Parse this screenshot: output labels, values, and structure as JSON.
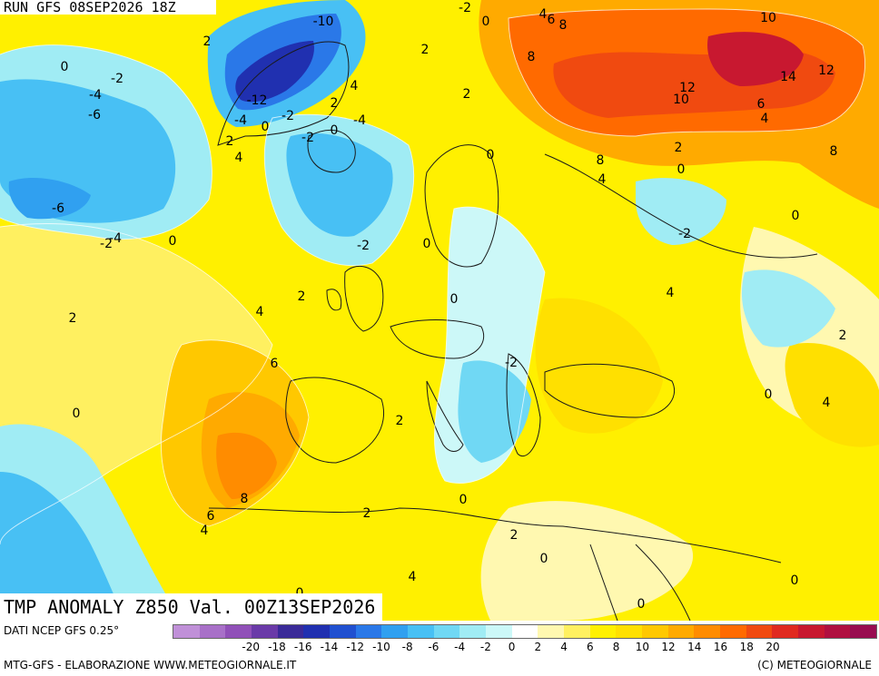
{
  "header": {
    "run_label": "RUN GFS 08SEP2026 18Z",
    "valid_label": "TMP ANOMALY Z850 Val. 00Z13SEP2026"
  },
  "footer": {
    "source_label": "DATI NCEP GFS 0.25°",
    "credit_label": "MTG-GFS - ELABORAZIONE WWW.METEOGIORNALE.IT",
    "copyright_label": "(C) METEOGIORNALE"
  },
  "legend": {
    "colors": [
      "#c090d8",
      "#a870c8",
      "#9050b8",
      "#6a3aa8",
      "#3a2a98",
      "#2030b0",
      "#2050d0",
      "#2a78e8",
      "#30a0f0",
      "#48c0f4",
      "#70d8f4",
      "#a0ecf4",
      "#ccf8f8",
      "#ffffff",
      "#fff8b0",
      "#fff060",
      "#fff000",
      "#ffe000",
      "#ffc800",
      "#ffaa00",
      "#ff8c00",
      "#ff6a00",
      "#f04a10",
      "#e02a20",
      "#c81830",
      "#b01040",
      "#980c50"
    ],
    "tick_labels": [
      "-20",
      "-18",
      "-16",
      "-14",
      "-12",
      "-10",
      "-8",
      "-6",
      "-4",
      "-2",
      "0",
      "2",
      "4",
      "6",
      "8",
      "10",
      "12",
      "14",
      "16",
      "18",
      "20"
    ],
    "tick_values": [
      -20,
      -18,
      -16,
      -14,
      -12,
      -10,
      -8,
      -6,
      -4,
      -2,
      0,
      2,
      4,
      6,
      8,
      10,
      12,
      14,
      16,
      18,
      20
    ]
  },
  "map": {
    "contour_labels": [
      "-10",
      "-2",
      "0",
      "4",
      "6",
      "8",
      "10",
      "2",
      "2",
      "0",
      "-2",
      "-4",
      "-6",
      "-12",
      "-4",
      "0",
      "-2",
      "2",
      "4",
      "2",
      "0",
      "-2",
      "0",
      "-4",
      "12",
      "14",
      "10",
      "12",
      "6",
      "4",
      "8",
      "8",
      "4",
      "2",
      "0",
      "-6",
      "-2",
      "-4",
      "0",
      "-2",
      "0",
      "2",
      "0",
      "-2",
      "4",
      "2",
      "4",
      "2",
      "6",
      "0",
      "-2",
      "2",
      "0",
      "4",
      "6",
      "8",
      "4",
      "2",
      "0",
      "2",
      "0",
      "4",
      "0",
      "0",
      "0"
    ]
  }
}
